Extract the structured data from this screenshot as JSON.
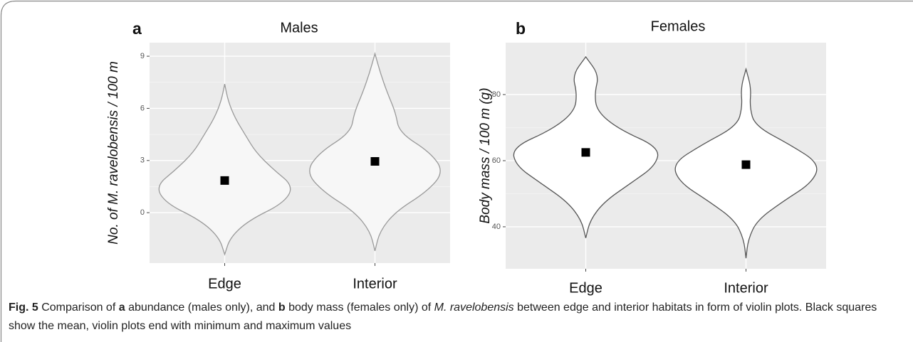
{
  "chart_data": [
    {
      "type": "violin",
      "panel": "a",
      "title": "Males",
      "y_label": "No. of M. ravelobensis / 100 m",
      "categories": [
        "Edge",
        "Interior"
      ],
      "ylim": [
        -2.9,
        9.78
      ],
      "yticks": [
        0,
        3,
        6,
        9
      ],
      "grid": true,
      "violin_fill": "#f7f7f7",
      "violin_stroke": "#9a9a9a",
      "mean_color": "#000000",
      "violins": [
        {
          "mean": 1.85,
          "min": -2.4,
          "max": 7.4,
          "density": [
            0,
            0.08,
            0.35,
            0.85,
            1.0,
            0.7,
            0.45,
            0.3,
            0.15,
            0.05,
            0
          ]
        },
        {
          "mean": 2.95,
          "min": -2.2,
          "max": 9.15,
          "density": [
            0,
            0.07,
            0.3,
            0.75,
            1.0,
            0.8,
            0.35,
            0.3,
            0.18,
            0.08,
            0
          ]
        }
      ]
    },
    {
      "type": "violin",
      "panel": "b",
      "title": "Females",
      "y_label": "Body mass  / 100 m (g)",
      "categories": [
        "Edge",
        "Interior"
      ],
      "ylim": [
        27.3,
        95.7
      ],
      "yticks": [
        40,
        60,
        80
      ],
      "grid": true,
      "violin_fill": "#ffffff",
      "violin_stroke": "#555555",
      "mean_color": "#000000",
      "violins": [
        {
          "mean": 62.5,
          "min": 36.6,
          "max": 91.4,
          "density": [
            0,
            0.06,
            0.25,
            0.6,
            0.95,
            1.0,
            0.45,
            0.15,
            0.12,
            0.18,
            0
          ]
        },
        {
          "mean": 58.8,
          "min": 30.5,
          "max": 87.7,
          "density": [
            0,
            0.03,
            0.15,
            0.5,
            0.9,
            1.0,
            0.6,
            0.12,
            0.05,
            0.07,
            0
          ]
        }
      ]
    }
  ],
  "caption": [
    "Fig. 5",
    " Comparison of ",
    "a",
    " abundance (males only), and ",
    "b",
    " body mass (females only) of ",
    "M. ravelobensis",
    " between edge and interior habitats in form of violin plots. Black squares show the mean, violin plots end with minimum and maximum values"
  ]
}
